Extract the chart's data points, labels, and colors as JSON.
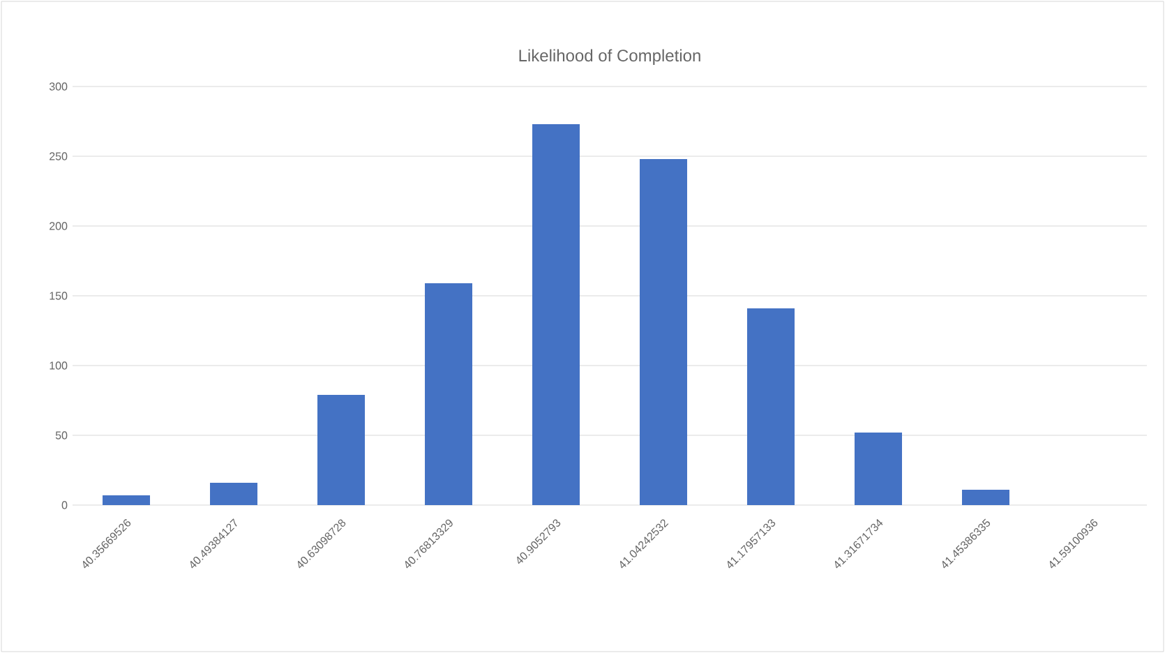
{
  "chart_data": {
    "type": "bar",
    "title": "Likelihood of Completion",
    "categories": [
      "40.35669526",
      "40.49384127",
      "40.63098728",
      "40.76813329",
      "40.9052793",
      "41.04242532",
      "41.17957133",
      "41.31671734",
      "41.45386335",
      "41.59100936"
    ],
    "values": [
      7,
      16,
      79,
      159,
      273,
      248,
      141,
      52,
      11,
      0
    ],
    "color": "#4472c4",
    "ylim": [
      0,
      300
    ],
    "yticks": [
      0,
      50,
      100,
      150,
      200,
      250,
      300
    ],
    "grid": "y"
  }
}
